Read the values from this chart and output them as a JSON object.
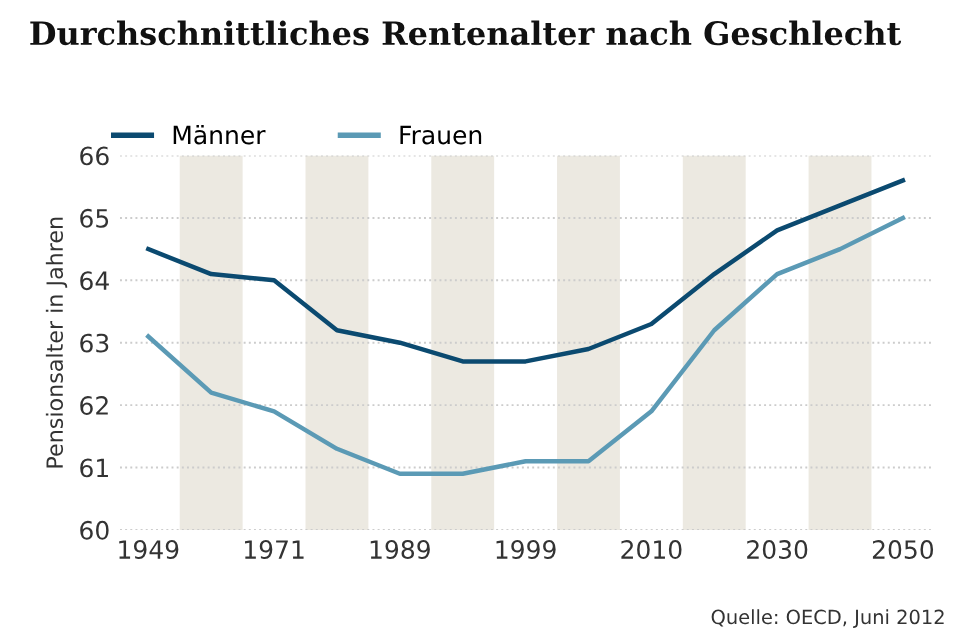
{
  "chart_data": {
    "type": "line",
    "title": "Durchschnittliches Rentenalter nach Geschlecht",
    "ylabel": "Pensionsalter in Jahren",
    "categories": [
      "1949",
      null,
      "1971",
      null,
      "1989",
      null,
      "1999",
      null,
      "2010",
      null,
      "2030",
      null,
      "2050"
    ],
    "series": [
      {
        "name": "Männer",
        "color": "#0b4a70",
        "values": [
          64.5,
          64.1,
          64.0,
          63.2,
          63.0,
          62.7,
          62.7,
          62.9,
          63.3,
          64.1,
          64.8,
          65.2,
          65.6
        ]
      },
      {
        "name": "Frauen",
        "color": "#5b9ab5",
        "values": [
          63.1,
          62.2,
          61.9,
          61.3,
          60.9,
          60.9,
          61.1,
          61.1,
          61.9,
          63.2,
          64.1,
          64.5,
          65.0
        ]
      }
    ],
    "ylim": [
      60,
      66
    ],
    "yticks": [
      60,
      61,
      62,
      63,
      64,
      65,
      66
    ],
    "bands": [
      {
        "axis": "x",
        "from": "1949",
        "to": "1971",
        "color": "#ece9e1"
      },
      {
        "axis": "x",
        "from": "1971",
        "to": "1989",
        "color": "#ece9e1"
      },
      {
        "axis": "x",
        "from": "1989",
        "to": "1999",
        "color": "#ece9e1"
      },
      {
        "axis": "x",
        "from": "1999",
        "to": "2010",
        "color": "#ece9e1"
      },
      {
        "axis": "x",
        "from": "2010",
        "to": "2030",
        "color": "#ece9e1"
      },
      {
        "axis": "x",
        "from": "2030",
        "to": "2050",
        "color": "#ece9e1"
      }
    ],
    "grid": "y",
    "legend": "top left",
    "marker": "none",
    "line_style": "solid",
    "annotations": [
      "Quelle: OECD, Juni 2012"
    ]
  }
}
